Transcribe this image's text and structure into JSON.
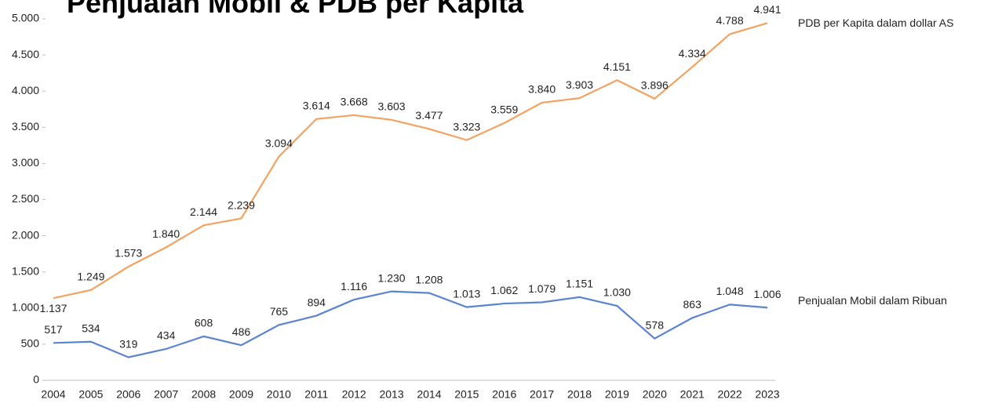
{
  "chart_data": {
    "type": "line",
    "title": "Penjualan Mobil & PDB per Kapita",
    "categories": [
      "2004",
      "2005",
      "2006",
      "2007",
      "2008",
      "2009",
      "2010",
      "2011",
      "2012",
      "2013",
      "2014",
      "2015",
      "2016",
      "2017",
      "2018",
      "2019",
      "2020",
      "2021",
      "2022",
      "2023"
    ],
    "series": [
      {
        "name": "PDB per Kapita dalam dollar AS",
        "color": "#f4a261",
        "values": [
          1137,
          1249,
          1573,
          1840,
          2144,
          2239,
          3094,
          3614,
          3668,
          3603,
          3477,
          3323,
          3559,
          3840,
          3903,
          4151,
          3896,
          4334,
          4788,
          4941
        ],
        "value_labels": [
          "1.137",
          "1.249",
          "1.573",
          "1.840",
          "2.144",
          "2.239",
          "3.094",
          "3.614",
          "3.668",
          "3.603",
          "3.477",
          "3.323",
          "3.559",
          "3.840",
          "3.903",
          "4.151",
          "3.896",
          "4.334",
          "4.788",
          "4.941"
        ]
      },
      {
        "name": "Penjualan Mobil dalam Ribuan",
        "color": "#5b84d0",
        "values": [
          517,
          534,
          319,
          434,
          608,
          486,
          765,
          894,
          1116,
          1230,
          1208,
          1013,
          1062,
          1079,
          1151,
          1030,
          578,
          863,
          1048,
          1006
        ],
        "value_labels": [
          "517",
          "534",
          "319",
          "434",
          "608",
          "486",
          "765",
          "894",
          "1.116",
          "1.230",
          "1.208",
          "1.013",
          "1.062",
          "1.079",
          "1.151",
          "1.030",
          "578",
          "863",
          "1.048",
          "1.006"
        ]
      }
    ],
    "ylim": [
      0,
      5000
    ],
    "yticks": [
      0,
      {
        "value": 500,
        "label": "500"
      },
      {
        "value": 1000,
        "label": "1.000"
      },
      {
        "value": 1500,
        "label": "1.500"
      },
      {
        "value": 2000,
        "label": "2.000"
      },
      {
        "value": 2500,
        "label": "2.500"
      },
      {
        "value": 3000,
        "label": "3.000"
      },
      {
        "value": 3500,
        "label": "3.500"
      },
      {
        "value": 4000,
        "label": "4.000"
      },
      {
        "value": 4500,
        "label": "4.500"
      },
      {
        "value": 5000,
        "label": "5.000"
      }
    ],
    "grid": false
  }
}
